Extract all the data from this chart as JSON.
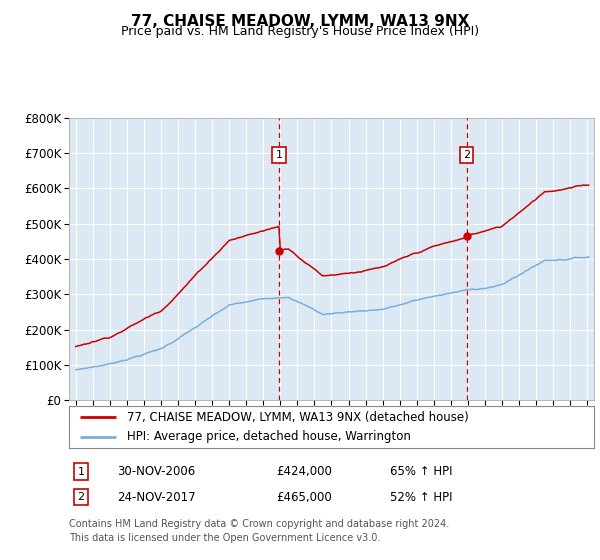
{
  "title": "77, CHAISE MEADOW, LYMM, WA13 9NX",
  "subtitle": "Price paid vs. HM Land Registry's House Price Index (HPI)",
  "ylim": [
    0,
    800000
  ],
  "yticks": [
    0,
    100000,
    200000,
    300000,
    400000,
    500000,
    600000,
    700000,
    800000
  ],
  "ytick_labels": [
    "£0",
    "£100K",
    "£200K",
    "£300K",
    "£400K",
    "£500K",
    "£600K",
    "£700K",
    "£800K"
  ],
  "xlim_start": 1994.6,
  "xlim_end": 2025.4,
  "plot_bg_color": "#dce9f5",
  "sale1_date": 2006.92,
  "sale1_price": 424000,
  "sale2_date": 2017.92,
  "sale2_price": 465000,
  "legend_line1": "77, CHAISE MEADOW, LYMM, WA13 9NX (detached house)",
  "legend_line2": "HPI: Average price, detached house, Warrington",
  "footer_line1": "Contains HM Land Registry data © Crown copyright and database right 2024.",
  "footer_line2": "This data is licensed under the Open Government Licence v3.0.",
  "table_row1": [
    "1",
    "30-NOV-2006",
    "£424,000",
    "65% ↑ HPI"
  ],
  "table_row2": [
    "2",
    "24-NOV-2017",
    "£465,000",
    "52% ↑ HPI"
  ],
  "red_color": "#cc0000",
  "blue_color": "#7aaddb"
}
